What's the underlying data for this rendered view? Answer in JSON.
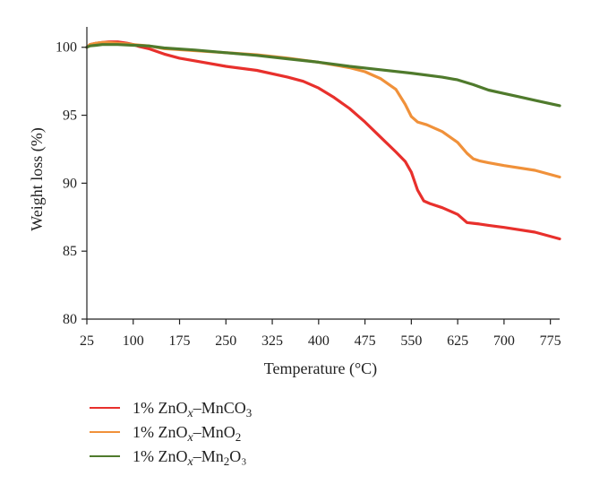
{
  "chart_data": {
    "type": "line",
    "title": "",
    "xlabel": "Temperature (°C)",
    "ylabel": "Weight loss (%)",
    "xlim": [
      25,
      790
    ],
    "ylim": [
      80,
      101.5
    ],
    "xticks": [
      25,
      100,
      175,
      250,
      325,
      400,
      475,
      550,
      625,
      700,
      775
    ],
    "yticks": [
      80,
      85,
      90,
      95,
      100
    ],
    "grid": false,
    "legend_position": "bottom-left",
    "series": [
      {
        "name": "1% ZnOx–MnCO3",
        "legend": {
          "base": "1% ZnO",
          "sub1": "x",
          "mid": "–MnCO",
          "sub2": "3",
          "tail": ""
        },
        "color": "#e8302c",
        "x": [
          25,
          30,
          40,
          50,
          60,
          75,
          90,
          100,
          110,
          125,
          150,
          175,
          200,
          250,
          300,
          350,
          375,
          400,
          425,
          450,
          475,
          500,
          525,
          540,
          550,
          560,
          570,
          580,
          600,
          625,
          640,
          650,
          660,
          675,
          700,
          750,
          790
        ],
        "y": [
          100.0,
          100.2,
          100.3,
          100.35,
          100.4,
          100.4,
          100.3,
          100.2,
          100.05,
          99.9,
          99.5,
          99.2,
          99.0,
          98.6,
          98.3,
          97.8,
          97.5,
          97.0,
          96.3,
          95.5,
          94.5,
          93.4,
          92.3,
          91.6,
          90.8,
          89.5,
          88.7,
          88.5,
          88.2,
          87.7,
          87.1,
          87.05,
          87.0,
          86.9,
          86.75,
          86.4,
          85.9
        ]
      },
      {
        "name": "1% ZnOx–MnO2",
        "legend": {
          "base": "1% ZnO",
          "sub1": "x",
          "mid": "–MnO",
          "sub2": "2",
          "tail": ""
        },
        "color": "#f0913a",
        "x": [
          25,
          30,
          40,
          50,
          60,
          75,
          90,
          100,
          125,
          150,
          200,
          250,
          300,
          350,
          400,
          450,
          475,
          500,
          525,
          540,
          550,
          560,
          575,
          600,
          625,
          640,
          650,
          660,
          675,
          700,
          750,
          790
        ],
        "y": [
          100.0,
          100.2,
          100.3,
          100.35,
          100.35,
          100.3,
          100.25,
          100.2,
          100.1,
          99.9,
          99.75,
          99.6,
          99.45,
          99.2,
          98.9,
          98.5,
          98.2,
          97.7,
          96.9,
          95.8,
          94.9,
          94.5,
          94.3,
          93.8,
          93.0,
          92.2,
          91.8,
          91.65,
          91.5,
          91.3,
          90.95,
          90.45
        ]
      },
      {
        "name": "1% ZnOx–Mn2O3",
        "legend": {
          "base": "1% ZnO",
          "sub1": "x",
          "mid": "–Mn",
          "sub2": "2",
          "tail": "O₃"
        },
        "color": "#4f7a2c",
        "x": [
          25,
          30,
          40,
          50,
          75,
          100,
          125,
          150,
          200,
          250,
          300,
          350,
          400,
          450,
          500,
          550,
          600,
          625,
          650,
          675,
          700,
          725,
          750,
          790
        ],
        "y": [
          100.0,
          100.1,
          100.15,
          100.2,
          100.2,
          100.15,
          100.1,
          99.95,
          99.8,
          99.6,
          99.4,
          99.15,
          98.9,
          98.6,
          98.35,
          98.1,
          97.8,
          97.6,
          97.25,
          96.85,
          96.6,
          96.35,
          96.1,
          95.7
        ]
      }
    ]
  }
}
